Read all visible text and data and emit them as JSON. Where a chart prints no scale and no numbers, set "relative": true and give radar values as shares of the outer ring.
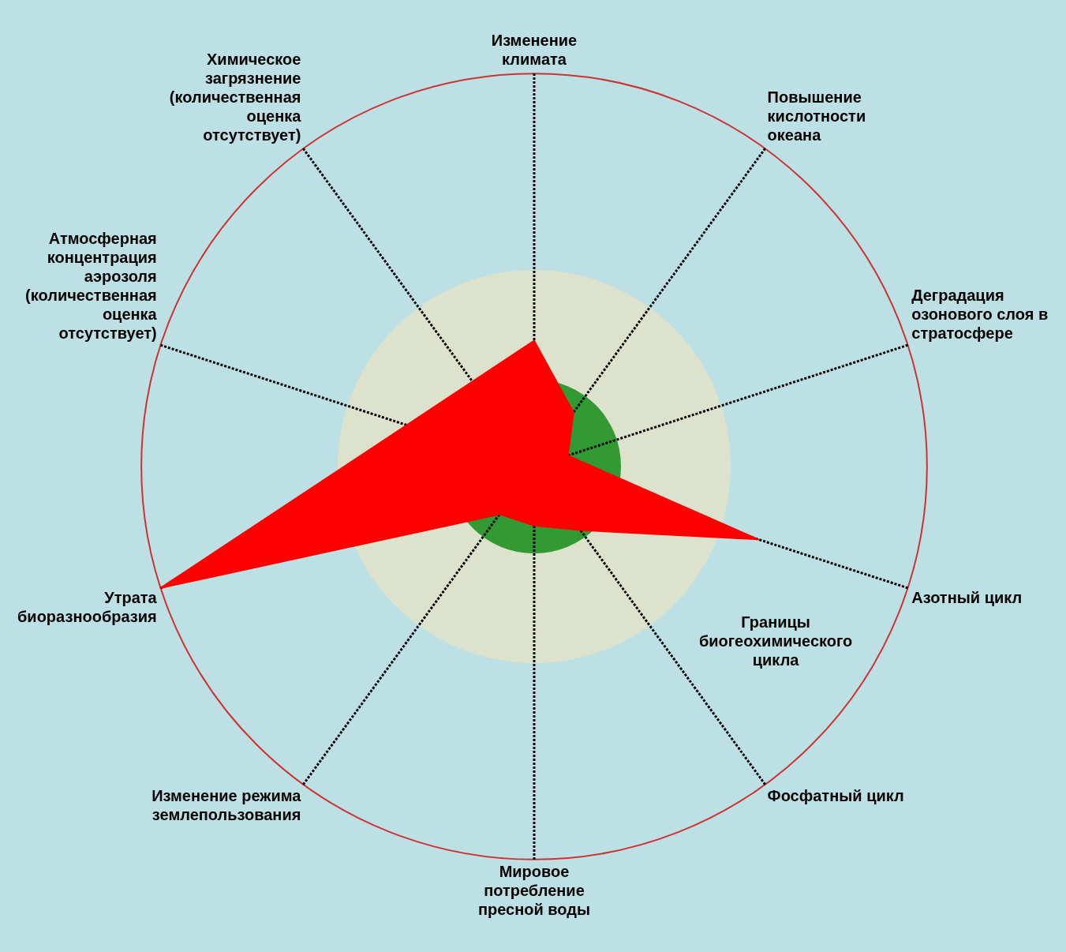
{
  "chart_data": {
    "type": "radar",
    "relative": true,
    "categories": [
      "Изменение климата",
      "Повышение кислотности океана",
      "Деградация озонового слоя в стратосфере",
      "Азотный цикл",
      "Фосфатный цикл",
      "Мировое потребление пресной воды",
      "Изменение режима землепользования",
      "Утрата биоразнообразия",
      "Атмосферная концентрация аэрозоля (количественная оценка отсутствует)",
      "Химическое загрязнение (количественная оценка отсутствует)"
    ],
    "values": [
      0.32,
      0.17,
      0.09,
      0.6,
      0.2,
      0.15,
      0.15,
      1,
      null,
      null
    ],
    "color": "#ff0000",
    "annotations": [
      "Границы биогеохимического цикла"
    ],
    "legend": false
  }
}
